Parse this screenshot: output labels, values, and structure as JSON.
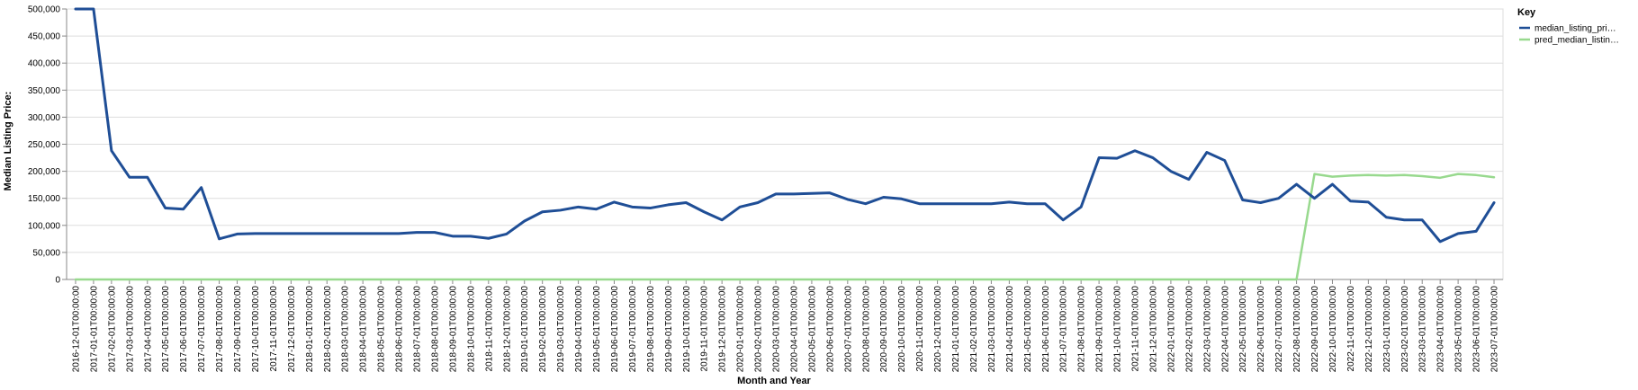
{
  "chart_data": {
    "type": "line",
    "xlabel": "Month and Year",
    "ylabel": "Median Listing Price:",
    "ylim": [
      0,
      500000
    ],
    "y_ticks": [
      "0",
      "50,000",
      "100,000",
      "150,000",
      "200,000",
      "250,000",
      "300,000",
      "350,000",
      "400,000",
      "450,000",
      "500,000"
    ],
    "grid": true,
    "legend": {
      "title": "Key",
      "placement": "top-right"
    },
    "x": [
      "2016-12-01T00:00:00",
      "2017-01-01T00:00:00",
      "2017-02-01T00:00:00",
      "2017-03-01T00:00:00",
      "2017-04-01T00:00:00",
      "2017-05-01T00:00:00",
      "2017-06-01T00:00:00",
      "2017-07-01T00:00:00",
      "2017-08-01T00:00:00",
      "2017-09-01T00:00:00",
      "2017-10-01T00:00:00",
      "2017-11-01T00:00:00",
      "2017-12-01T00:00:00",
      "2018-01-01T00:00:00",
      "2018-02-01T00:00:00",
      "2018-03-01T00:00:00",
      "2018-04-01T00:00:00",
      "2018-05-01T00:00:00",
      "2018-06-01T00:00:00",
      "2018-07-01T00:00:00",
      "2018-08-01T00:00:00",
      "2018-09-01T00:00:00",
      "2018-10-01T00:00:00",
      "2018-11-01T00:00:00",
      "2018-12-01T00:00:00",
      "2019-01-01T00:00:00",
      "2019-02-01T00:00:00",
      "2019-03-01T00:00:00",
      "2019-04-01T00:00:00",
      "2019-05-01T00:00:00",
      "2019-06-01T00:00:00",
      "2019-07-01T00:00:00",
      "2019-08-01T00:00:00",
      "2019-09-01T00:00:00",
      "2019-10-01T00:00:00",
      "2019-11-01T00:00:00",
      "2019-12-01T00:00:00",
      "2020-01-01T00:00:00",
      "2020-02-01T00:00:00",
      "2020-03-01T00:00:00",
      "2020-04-01T00:00:00",
      "2020-05-01T00:00:00",
      "2020-06-01T00:00:00",
      "2020-07-01T00:00:00",
      "2020-08-01T00:00:00",
      "2020-09-01T00:00:00",
      "2020-10-01T00:00:00",
      "2020-11-01T00:00:00",
      "2020-12-01T00:00:00",
      "2021-01-01T00:00:00",
      "2021-02-01T00:00:00",
      "2021-03-01T00:00:00",
      "2021-04-01T00:00:00",
      "2021-05-01T00:00:00",
      "2021-06-01T00:00:00",
      "2021-07-01T00:00:00",
      "2021-08-01T00:00:00",
      "2021-09-01T00:00:00",
      "2021-10-01T00:00:00",
      "2021-11-01T00:00:00",
      "2021-12-01T00:00:00",
      "2022-01-01T00:00:00",
      "2022-02-01T00:00:00",
      "2022-03-01T00:00:00",
      "2022-04-01T00:00:00",
      "2022-05-01T00:00:00",
      "2022-06-01T00:00:00",
      "2022-07-01T00:00:00",
      "2022-08-01T00:00:00",
      "2022-09-01T00:00:00",
      "2022-10-01T00:00:00",
      "2022-11-01T00:00:00",
      "2022-12-01T00:00:00",
      "2023-01-01T00:00:00",
      "2023-02-01T00:00:00",
      "2023-03-01T00:00:00",
      "2023-04-01T00:00:00",
      "2023-05-01T00:00:00",
      "2023-06-01T00:00:00",
      "2023-07-01T00:00:00"
    ],
    "series": [
      {
        "name": "median_listing_pri…",
        "color": "#1f4e96",
        "values": [
          500000,
          500000,
          238000,
          189000,
          189000,
          132000,
          130000,
          170000,
          75000,
          84000,
          85000,
          85000,
          85000,
          85000,
          85000,
          85000,
          85000,
          85000,
          85000,
          87000,
          87000,
          80000,
          80000,
          76000,
          84000,
          108000,
          125000,
          128000,
          134000,
          130000,
          143000,
          134000,
          132000,
          138000,
          142000,
          125000,
          110000,
          134000,
          142000,
          158000,
          158000,
          159000,
          160000,
          148000,
          140000,
          152000,
          149000,
          140000,
          140000,
          140000,
          140000,
          140000,
          143000,
          140000,
          140000,
          110000,
          134000,
          225000,
          224000,
          238000,
          225000,
          200000,
          185000,
          235000,
          220000,
          147000,
          142000,
          150000,
          176000,
          150000,
          176000,
          145000,
          143000,
          115000,
          110000,
          110000,
          70000,
          85000,
          89000,
          142000
        ]
      },
      {
        "name": "pred_median_listin…",
        "color": "#98d98e",
        "values": [
          0,
          0,
          0,
          0,
          0,
          0,
          0,
          0,
          0,
          0,
          0,
          0,
          0,
          0,
          0,
          0,
          0,
          0,
          0,
          0,
          0,
          0,
          0,
          0,
          0,
          0,
          0,
          0,
          0,
          0,
          0,
          0,
          0,
          0,
          0,
          0,
          0,
          0,
          0,
          0,
          0,
          0,
          0,
          0,
          0,
          0,
          0,
          0,
          0,
          0,
          0,
          0,
          0,
          0,
          0,
          0,
          0,
          0,
          0,
          0,
          0,
          0,
          0,
          0,
          0,
          0,
          0,
          0,
          0,
          195000,
          190000,
          192000,
          193000,
          192000,
          193000,
          191000,
          188000,
          195000,
          193000,
          189000
        ]
      }
    ]
  }
}
